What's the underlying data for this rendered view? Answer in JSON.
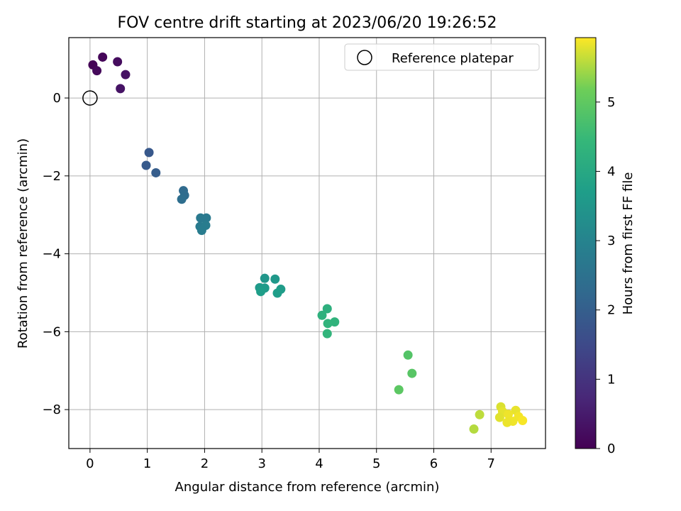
{
  "chart_data": {
    "type": "scatter",
    "title": "FOV centre drift starting at 2023/06/20 19:26:52",
    "xlabel": "Angular distance from reference (arcmin)",
    "ylabel": "Rotation from reference (arcmin)",
    "xlim": [
      -0.37,
      7.95
    ],
    "ylim": [
      -9.0,
      1.55
    ],
    "xticks": [
      0,
      1,
      2,
      3,
      4,
      5,
      6,
      7
    ],
    "yticks": [
      -8,
      -6,
      -4,
      -2,
      0
    ],
    "grid": true,
    "legend": {
      "placement": "upper right",
      "entries": [
        "Reference platepar"
      ]
    },
    "reference_point": {
      "name": "Reference platepar",
      "x": 0,
      "y": 0,
      "marker": "open-circle"
    },
    "colorbar": {
      "label": "Hours from first FF file",
      "colormap": "viridis",
      "range": [
        0,
        5.93
      ],
      "ticks": [
        0,
        1,
        2,
        3,
        4,
        5
      ]
    },
    "series": [
      {
        "points": [
          {
            "x": 0.05,
            "y": 0.85,
            "c": 0.05
          },
          {
            "x": 0.22,
            "y": 1.05,
            "c": 0.1
          },
          {
            "x": 0.12,
            "y": 0.7,
            "c": 0.15
          },
          {
            "x": 0.48,
            "y": 0.93,
            "c": 0.2
          },
          {
            "x": 0.62,
            "y": 0.6,
            "c": 0.3
          },
          {
            "x": 0.53,
            "y": 0.24,
            "c": 0.35
          },
          {
            "x": 1.03,
            "y": -1.4,
            "c": 1.85
          },
          {
            "x": 0.98,
            "y": -1.73,
            "c": 1.9
          },
          {
            "x": 1.15,
            "y": -1.92,
            "c": 1.95
          },
          {
            "x": 1.63,
            "y": -2.38,
            "c": 2.3
          },
          {
            "x": 1.65,
            "y": -2.5,
            "c": 2.35
          },
          {
            "x": 1.6,
            "y": -2.6,
            "c": 2.4
          },
          {
            "x": 1.93,
            "y": -3.08,
            "c": 2.7
          },
          {
            "x": 2.03,
            "y": -3.08,
            "c": 2.72
          },
          {
            "x": 1.92,
            "y": -3.3,
            "c": 2.75
          },
          {
            "x": 2.02,
            "y": -3.27,
            "c": 2.78
          },
          {
            "x": 1.95,
            "y": -3.4,
            "c": 2.8
          },
          {
            "x": 3.05,
            "y": -4.63,
            "c": 3.5
          },
          {
            "x": 3.23,
            "y": -4.65,
            "c": 3.55
          },
          {
            "x": 2.96,
            "y": -4.87,
            "c": 3.6
          },
          {
            "x": 3.05,
            "y": -4.88,
            "c": 3.62
          },
          {
            "x": 3.33,
            "y": -4.91,
            "c": 3.65
          },
          {
            "x": 2.98,
            "y": -4.97,
            "c": 3.7
          },
          {
            "x": 3.27,
            "y": -5.01,
            "c": 3.72
          },
          {
            "x": 4.14,
            "y": -5.41,
            "c": 4.2
          },
          {
            "x": 4.05,
            "y": -5.58,
            "c": 4.25
          },
          {
            "x": 4.27,
            "y": -5.75,
            "c": 4.3
          },
          {
            "x": 4.15,
            "y": -5.79,
            "c": 4.32
          },
          {
            "x": 4.14,
            "y": -6.05,
            "c": 4.35
          },
          {
            "x": 5.55,
            "y": -6.6,
            "c": 4.85
          },
          {
            "x": 5.62,
            "y": -7.07,
            "c": 4.9
          },
          {
            "x": 5.39,
            "y": -7.49,
            "c": 4.95
          },
          {
            "x": 7.17,
            "y": -7.93,
            "c": 5.75
          },
          {
            "x": 7.2,
            "y": -8.05,
            "c": 5.8
          },
          {
            "x": 7.43,
            "y": -8.02,
            "c": 5.82
          },
          {
            "x": 6.8,
            "y": -8.13,
            "c": 5.6
          },
          {
            "x": 7.3,
            "y": -8.12,
            "c": 5.85
          },
          {
            "x": 7.15,
            "y": -8.2,
            "c": 5.78
          },
          {
            "x": 7.48,
            "y": -8.18,
            "c": 5.88
          },
          {
            "x": 7.55,
            "y": -8.28,
            "c": 5.9
          },
          {
            "x": 7.38,
            "y": -8.3,
            "c": 5.86
          },
          {
            "x": 7.28,
            "y": -8.33,
            "c": 5.84
          },
          {
            "x": 6.7,
            "y": -8.5,
            "c": 5.55
          }
        ]
      }
    ]
  }
}
